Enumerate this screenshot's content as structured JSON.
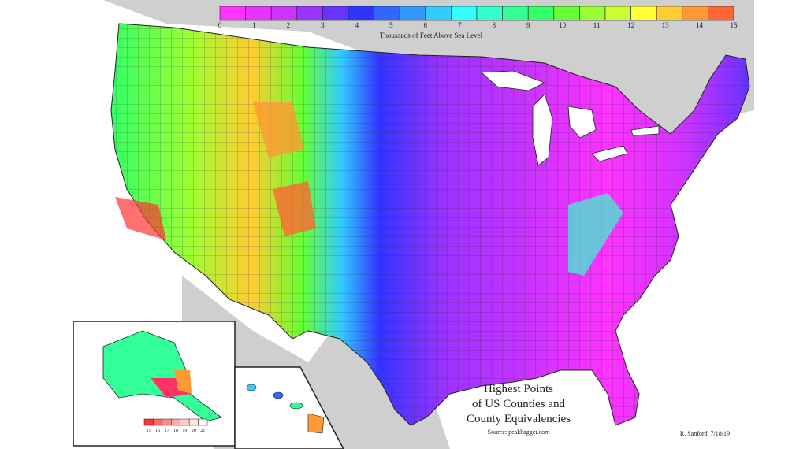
{
  "legend": {
    "title": "Thousands of Feet Above Sea Level",
    "ticks": [
      "0",
      "1",
      "2",
      "3",
      "4",
      "5",
      "6",
      "7",
      "8",
      "9",
      "10",
      "11",
      "12",
      "13",
      "14",
      "15"
    ],
    "colors": [
      "#ff33ff",
      "#e633ff",
      "#cc33ff",
      "#9933ff",
      "#6633ff",
      "#3333ff",
      "#3366ff",
      "#3399ff",
      "#33ccff",
      "#33ffff",
      "#33ffcc",
      "#33ff99",
      "#33ff66",
      "#66ff33",
      "#99ff33",
      "#ccff33",
      "#ffff33",
      "#ffcc33",
      "#ff9933",
      "#ff6633"
    ]
  },
  "alaska_legend": {
    "ticks": [
      "15",
      "16",
      "17",
      "18",
      "19",
      "20",
      "21"
    ],
    "colors": [
      "#ff3333",
      "#ff6666",
      "#ff8888",
      "#ffaaaa",
      "#ffcccc",
      "#ffe6e6",
      "#ffffff"
    ]
  },
  "title": {
    "line1": "Highest Points",
    "line2": "of US Counties and",
    "line3": "County Equivalencies"
  },
  "source": "Source: peakbagger.com",
  "credit": "R. Sanford, 7/18/19",
  "colors": {
    "land_bg": "#cfcfcf",
    "water": "#ffffff",
    "county_line": "#222222"
  }
}
